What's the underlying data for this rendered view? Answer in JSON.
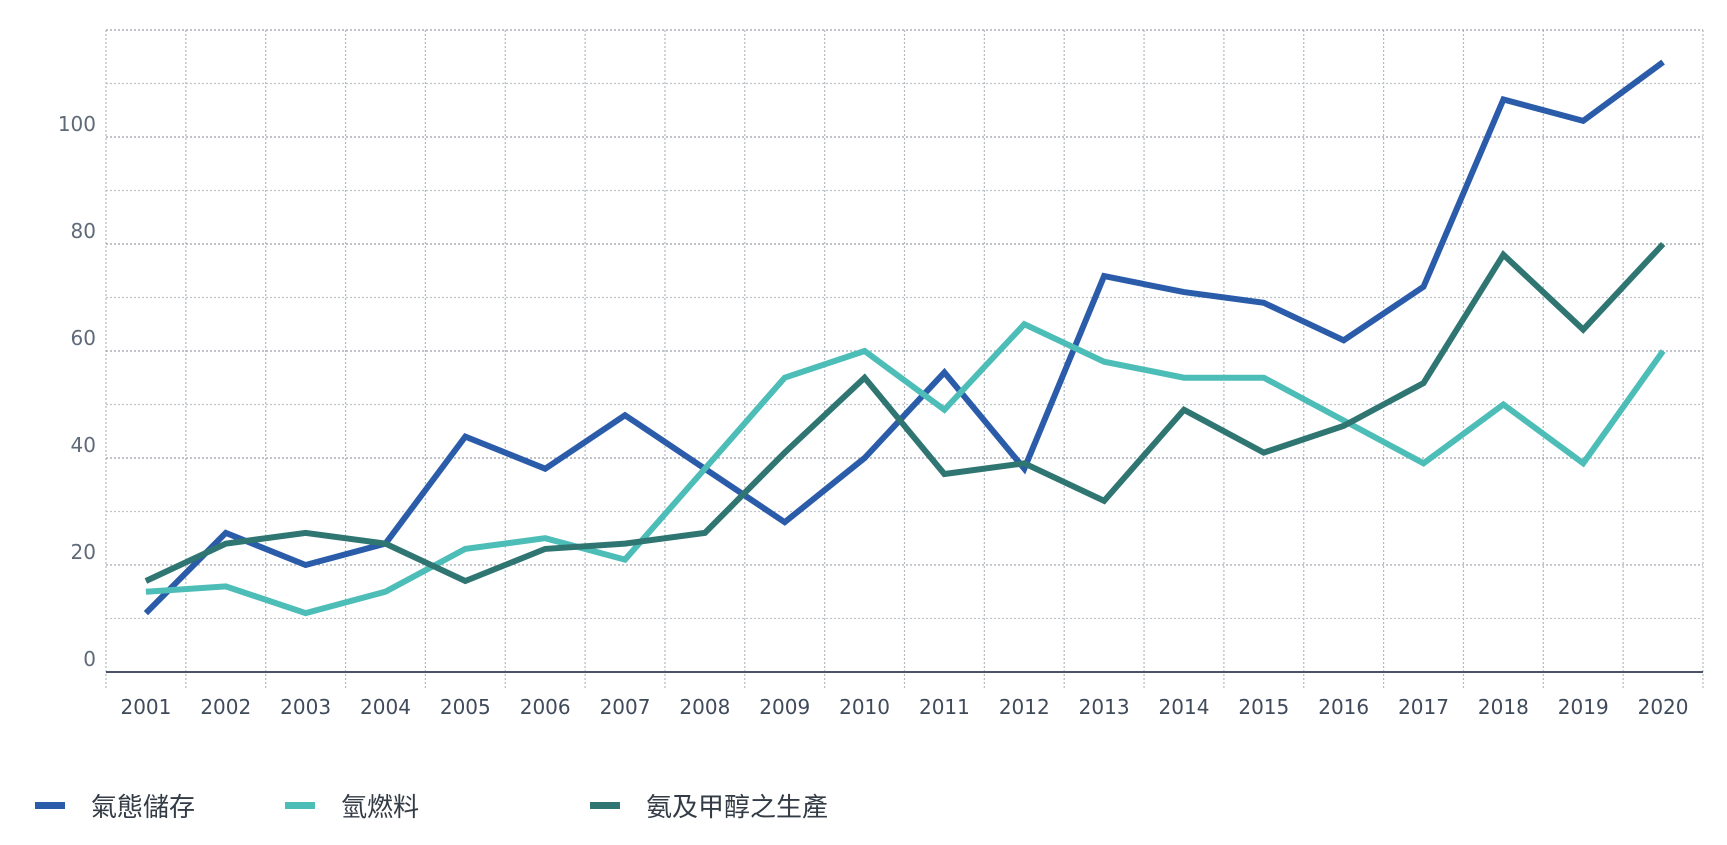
{
  "chart_data": {
    "type": "line",
    "title": "",
    "xlabel": "",
    "ylabel": "",
    "x": [
      "2001",
      "2002",
      "2003",
      "2004",
      "2005",
      "2006",
      "2007",
      "2008",
      "2009",
      "2010",
      "2011",
      "2012",
      "2013",
      "2014",
      "2015",
      "2016",
      "2017",
      "2018",
      "2019",
      "2020"
    ],
    "yticks": [
      "0",
      "20",
      "40",
      "60",
      "80",
      "100"
    ],
    "ylim": [
      -3,
      120
    ],
    "grid": true,
    "legend_position": "bottom",
    "series": [
      {
        "name": "氣態儲存",
        "color": "#2a5caa",
        "values": [
          11,
          26,
          20,
          24,
          44,
          38,
          48,
          38,
          28,
          40,
          56,
          38,
          74,
          71,
          69,
          62,
          72,
          107,
          103,
          114
        ]
      },
      {
        "name": "氫燃料",
        "color": "#4dbdb7",
        "values": [
          15,
          16,
          11,
          15,
          23,
          25,
          21,
          38,
          55,
          60,
          49,
          65,
          58,
          55,
          55,
          47,
          39,
          50,
          39,
          60
        ]
      },
      {
        "name": "氨及甲醇之生產",
        "color": "#2f7672",
        "values": [
          17,
          24,
          26,
          24,
          17,
          23,
          24,
          26,
          41,
          55,
          37,
          39,
          32,
          49,
          41,
          46,
          54,
          78,
          64,
          80
        ]
      }
    ]
  }
}
